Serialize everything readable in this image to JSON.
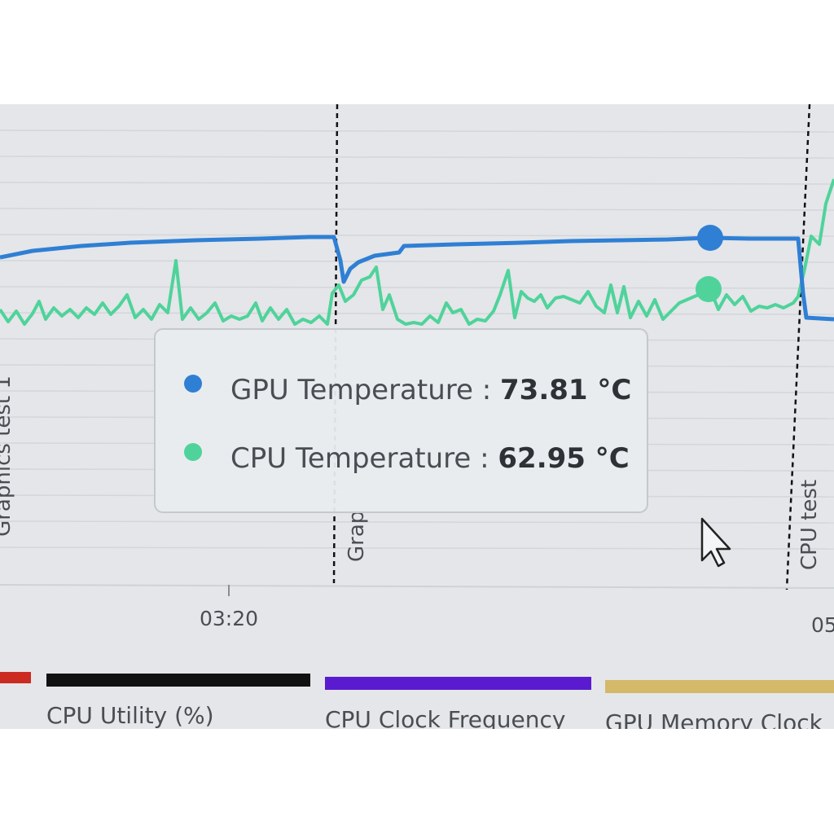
{
  "markers": [
    "Graphics test 1",
    "Grap",
    "CPU test"
  ],
  "x_axis": {
    "ticks": [
      "03:20",
      "05"
    ]
  },
  "tooltip": {
    "items": [
      {
        "label": "GPU Temperature :",
        "value": "73.81 °C"
      },
      {
        "label": "CPU Temperature :",
        "value": "62.95 °C"
      }
    ]
  },
  "legend": [
    "CPU Utility (%)",
    "CPU Clock Frequency",
    "GPU Memory Clock"
  ]
}
